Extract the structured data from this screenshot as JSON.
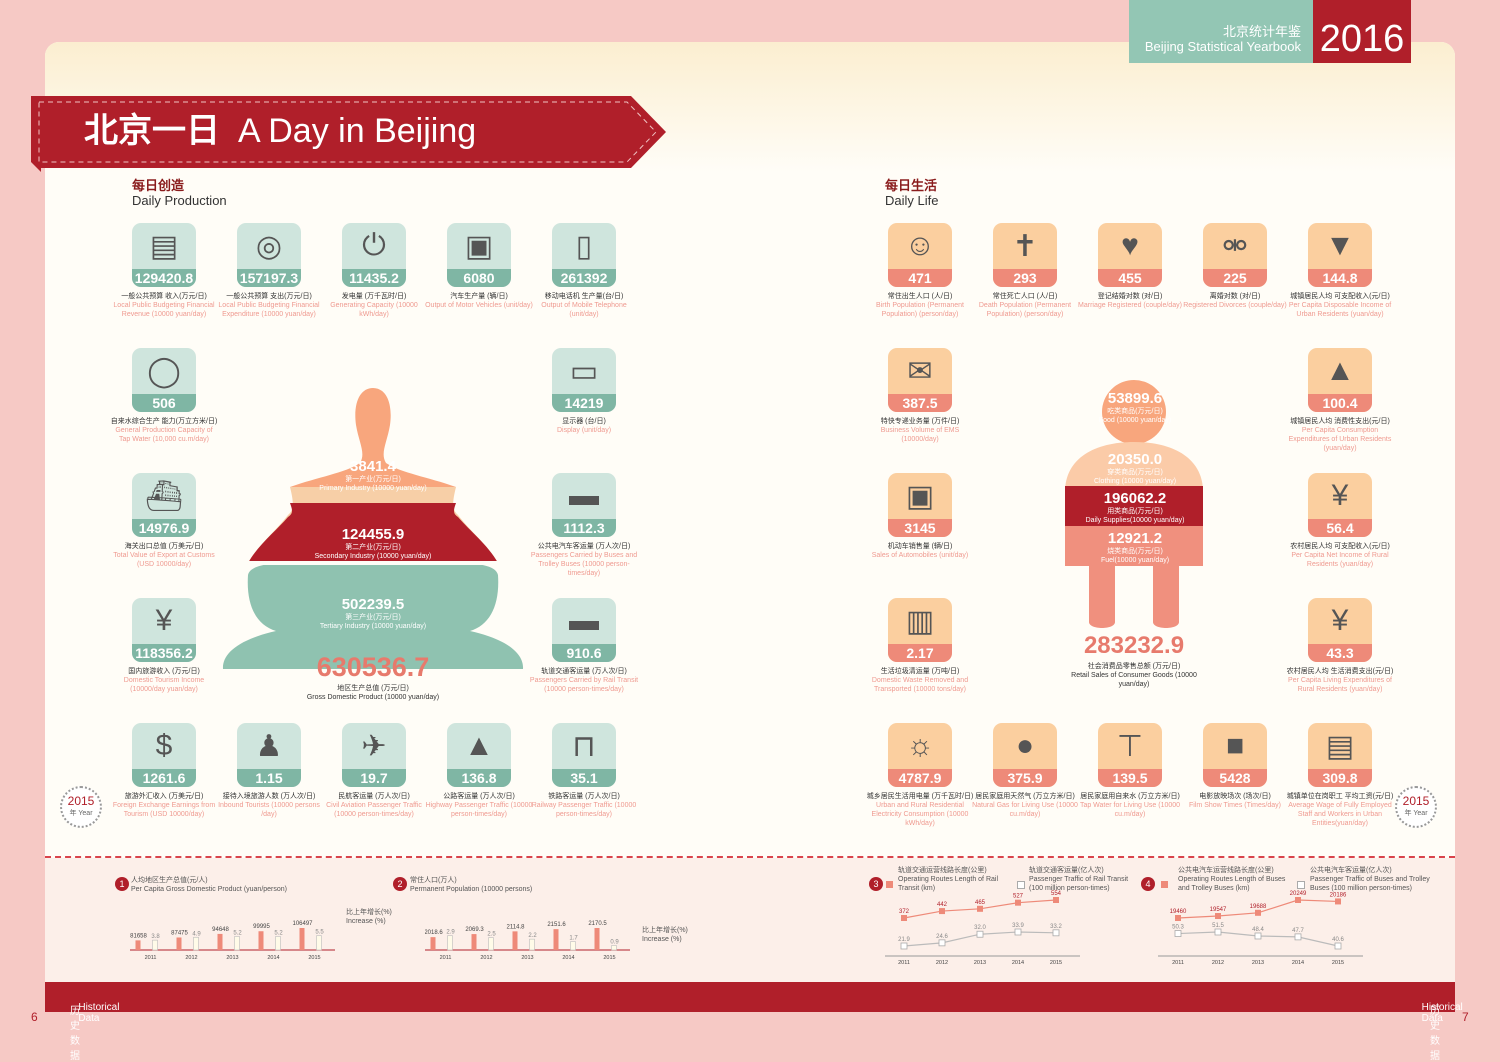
{
  "header": {
    "yearbook_zh": "北京统计年鉴",
    "yearbook_en": "Beijing Statistical Yearbook",
    "year": "2016"
  },
  "banner": {
    "title_zh": "北京一日",
    "title_en": "A Day in Beijing"
  },
  "production": {
    "title_zh": "每日创造",
    "title_en": "Daily Production",
    "tiles": [
      {
        "value": "129420.8",
        "zh": "一般公共预算 收入(万元/日)",
        "en": "Local Public Budgeting Financial Revenue (10000 yuan/day)",
        "icon": "money-stack-icon"
      },
      {
        "value": "157197.3",
        "zh": "一般公共预算 支出(万元/日)",
        "en": "Local Public Budgeting Financial Expenditure (10000 yuan/day)",
        "icon": "coins-icon"
      },
      {
        "value": "11435.2",
        "zh": "发电量 (万千瓦时/日)",
        "en": "Generating Capacity (10000 kWh/day)",
        "icon": "plug-icon"
      },
      {
        "value": "6080",
        "zh": "汽车生产量 (辆/日)",
        "en": "Output of Motor Vehicles (unit/day)",
        "icon": "car-icon"
      },
      {
        "value": "261392",
        "zh": "移动电话机 生产量(台/日)",
        "en": "Output of Mobile Telephone (unit/day)",
        "icon": "mobile-phone-icon"
      },
      {
        "value": "506",
        "zh": "自来水综合生产 能力(万立方米/日)",
        "en": "General Production Capacity of Tap Water (10,000 cu.m/day)",
        "icon": "water-tank-icon"
      },
      {
        "value": "14219",
        "zh": "显示器 (台/日)",
        "en": "Display (unit/day)",
        "icon": "monitor-icon"
      },
      {
        "value": "14976.9",
        "zh": "海关出口总值 (万美元/日)",
        "en": "Total Value of Export at Customs (USD 10000/day)",
        "icon": "cargo-ship-icon"
      },
      {
        "value": "1112.3",
        "zh": "公共电汽车客运量 (万人次/日)",
        "en": "Passengers Carried by Buses and Trolley Buses (10000 person-times/day)",
        "icon": "bus-icon"
      },
      {
        "value": "118356.2",
        "zh": "国内旅游收入 (万元/日)",
        "en": "Domestic Tourism Income (10000/day yuan/day)",
        "icon": "money-bag-icon"
      },
      {
        "value": "910.6",
        "zh": "轨道交通客运量 (万人次/日)",
        "en": "Passengers Carried by Rail Transit (10000 person-times/day)",
        "icon": "train-icon"
      },
      {
        "value": "1261.6",
        "zh": "旅游外汇收入 (万美元/日)",
        "en": "Foreign Exchange Earnings from Tourism (USD 10000/day)",
        "icon": "dollar-coin-icon"
      },
      {
        "value": "1.15",
        "zh": "接待入境旅游人数 (万人次/日)",
        "en": "Inbound Tourists (10000 persons /day)",
        "icon": "tourist-icon"
      },
      {
        "value": "19.7",
        "zh": "民航客运量 (万人次/日)",
        "en": "Civil Aviation Passenger Traffic (10000 person-times/day)",
        "icon": "airplane-icon"
      },
      {
        "value": "136.8",
        "zh": "公路客运量 (万人次/日)",
        "en": "Highway Passenger Traffic (10000 person-times/day)",
        "icon": "highway-icon"
      },
      {
        "value": "35.1",
        "zh": "铁路客运量 (万人次/日)",
        "en": "Railway Passenger Traffic (10000 person-times/day)",
        "icon": "railway-icon"
      }
    ],
    "stupa": {
      "primary": {
        "value": "3841.4",
        "zh": "第一产业(万元/日)",
        "en": "Primary Industry (10000 yuan/day)"
      },
      "secondary": {
        "value": "124455.9",
        "zh": "第二产业(万元/日)",
        "en": "Secondary Industry (10000 yuan/day)"
      },
      "tertiary": {
        "value": "502239.5",
        "zh": "第三产业(万元/日)",
        "en": "Tertiary Industry (10000 yuan/day)"
      },
      "total": {
        "value": "630536.7",
        "zh": "地区生产总值 (万元/日)",
        "en": "Gross Domestic Product (10000 yuan/day)"
      }
    }
  },
  "life": {
    "title_zh": "每日生活",
    "title_en": "Daily Life",
    "tiles": [
      {
        "value": "471",
        "zh": "常住出生人口 (人/日)",
        "en": "Birth Population (Permanent Population) (person/day)",
        "icon": "baby-icon"
      },
      {
        "value": "293",
        "zh": "常住死亡人口 (人/日)",
        "en": "Death Population (Permanent Population) (person/day)",
        "icon": "cross-icon"
      },
      {
        "value": "455",
        "zh": "登记结婚对数 (对/日)",
        "en": "Marriage Registered (couple/day)",
        "icon": "couple-icon"
      },
      {
        "value": "225",
        "zh": "离婚对数 (对/日)",
        "en": "Registered Divorces (couple/day)",
        "icon": "divorce-icon"
      },
      {
        "value": "144.8",
        "zh": "城镇居民人均 可支配收入(元/日)",
        "en": "Per Capita Disposable Income of Urban Residents (yuan/day)",
        "icon": "card-in-icon"
      },
      {
        "value": "387.5",
        "zh": "特快专递业务量 (万件/日)",
        "en": "Business Volume of EMS (10000/day)",
        "icon": "envelope-icon"
      },
      {
        "value": "100.4",
        "zh": "城镇居民人均 消费性支出(元/日)",
        "en": "Per Capita Consumption Expenditures of Urban Residents (yuan/day)",
        "icon": "card-out-icon"
      },
      {
        "value": "3145",
        "zh": "机动车销售量 (辆/日)",
        "en": "Sales of Automobiles (unit/day)",
        "icon": "car-front-icon"
      },
      {
        "value": "56.4",
        "zh": "农村居民人均 可支配收入(元/日)",
        "en": "Per Capita Net Income of Rural Residents (yuan/day)",
        "icon": "yuan-bag-in-icon"
      },
      {
        "value": "2.17",
        "zh": "生活垃圾清运量 (万吨/日)",
        "en": "Domestic Waste Removed and Transported (10000 tons/day)",
        "icon": "trash-icon"
      },
      {
        "value": "43.3",
        "zh": "农村居民人均 生活消费支出(元/日)",
        "en": "Per Capita Living Expenditures of Rural Residents (yuan/day)",
        "icon": "yuan-bag-out-icon"
      },
      {
        "value": "4787.9",
        "zh": "城乡居民生活用电量 (万千瓦时/日)",
        "en": "Urban and Rural Residential Electricity Consumption (10000 kWh/day)",
        "icon": "lamp-icon"
      },
      {
        "value": "375.9",
        "zh": "居民家庭用天然气 (万立方米/日)",
        "en": "Natural Gas for Living Use (10000 cu.m/day)",
        "icon": "gas-bomb-icon"
      },
      {
        "value": "139.5",
        "zh": "居民家庭用自来水 (万立方米/日)",
        "en": "Tap Water for Living Use (10000 cu.m/day)",
        "icon": "faucet-icon"
      },
      {
        "value": "5428",
        "zh": "电影放映场次 (场次/日)",
        "en": "Film Show Times (Times/day)",
        "icon": "film-camera-icon"
      },
      {
        "value": "309.8",
        "zh": "城镇单位在岗职工 平均工资(元/日)",
        "en": "Average Wage of Fully Employed Staff and Workers in Urban Entities(yuan/day)",
        "icon": "card-worker-icon"
      }
    ],
    "person": {
      "food": {
        "value": "53899.6",
        "zh": "吃类商品(万元/日)",
        "en": "Food (10000 yuan/day)"
      },
      "clothing": {
        "value": "20350.0",
        "zh": "穿类商品(万元/日)",
        "en": "Clothing (10000 yuan/day)"
      },
      "daily": {
        "value": "196062.2",
        "zh": "用类商品(万元/日)",
        "en": "Daily Supplies(10000 yuan/day)"
      },
      "fuel": {
        "value": "12921.2",
        "zh": "烧类商品(万元/日)",
        "en": "Fuel(10000 yuan/day)"
      },
      "total": {
        "value": "283232.9",
        "zh": "社会消费品零售总额 (万元/日)",
        "en": "Retail Sales of Consumer Goods (10000 yuan/day)"
      }
    }
  },
  "stamp": {
    "year": "2015",
    "zh": "年",
    "en": "Year"
  },
  "chart_data": [
    {
      "type": "bar",
      "number": "1",
      "title_zh": "人均地区生产总值(元/人)",
      "title": "Per Capita Gross Domestic Product (yuan/person)",
      "categories": [
        "2011",
        "2012",
        "2013",
        "2014",
        "2015"
      ],
      "series": [
        {
          "name": "人均地区生产总值(元/人)",
          "values": [
            81658,
            87475,
            94648,
            99995,
            106497
          ]
        },
        {
          "name": "比上年增长(%) Increase (%)",
          "values": [
            3.8,
            4.9,
            5.2,
            5.2,
            5.5
          ]
        }
      ],
      "legend_zh": "比上年增长(%)",
      "legend_en": "Increase (%)",
      "labels": [
        "81658",
        "87475",
        "94648",
        "99995",
        "106497"
      ],
      "growth_labels": [
        "3.8",
        "4.9",
        "5.2",
        "5.2",
        "5.5"
      ]
    },
    {
      "type": "bar",
      "number": "2",
      "title_zh": "常住人口(万人)",
      "title": "Permanent Population (10000 persons)",
      "categories": [
        "2011",
        "2012",
        "2013",
        "2014",
        "2015"
      ],
      "series": [
        {
          "name": "常住人口(万人)",
          "values": [
            2018.6,
            2069.3,
            2114.8,
            2151.6,
            2170.5
          ]
        },
        {
          "name": "比上年增长(%) Increase (%)",
          "values": [
            2.9,
            2.5,
            2.2,
            1.7,
            0.9
          ]
        }
      ],
      "legend_zh": "比上年增长(%)",
      "legend_en": "Increase (%)",
      "labels": [
        "2018.6",
        "2069.3",
        "2114.8",
        "2151.6",
        "2170.5"
      ],
      "growth_labels": [
        "2.9",
        "2.5",
        "2.2",
        "1.7",
        "0.9"
      ]
    },
    {
      "type": "line",
      "number": "3",
      "legend": [
        {
          "zh": "轨道交通运营线路长度(公里)",
          "en": "Operating Routes Length of Rail Transit (km)"
        },
        {
          "zh": "轨道交通客运量(亿人次)",
          "en": "Passenger Traffic of Rail Transit (100 million person-times)"
        }
      ],
      "categories": [
        "2011",
        "2012",
        "2013",
        "2014",
        "2015"
      ],
      "series": [
        {
          "name": "Operating Routes Length of Rail Transit (km)",
          "values": [
            372,
            442,
            465,
            527,
            554
          ]
        },
        {
          "name": "Passenger Traffic of Rail Transit (100 million person-times)",
          "values": [
            21.9,
            24.6,
            32.0,
            33.9,
            33.2
          ]
        }
      ],
      "labels": [
        "372",
        "442",
        "465",
        "527",
        "554"
      ],
      "labels2": [
        "21.9",
        "24.6",
        "32.0",
        "33.9",
        "33.2"
      ]
    },
    {
      "type": "line",
      "number": "4",
      "legend": [
        {
          "zh": "公共电汽车运营线路长度(公里)",
          "en": "Operating Routes Length of Buses and Trolley Buses (km)"
        },
        {
          "zh": "公共电汽车客运量(亿人次)",
          "en": "Passenger Traffic of Buses and Trolley Buses (100 million person-times)"
        }
      ],
      "categories": [
        "2011",
        "2012",
        "2013",
        "2014",
        "2015"
      ],
      "series": [
        {
          "name": "Operating Routes Length of Buses and Trolley Buses (km)",
          "values": [
            19460,
            19547,
            19688,
            20249,
            20186
          ]
        },
        {
          "name": "Passenger Traffic of Buses and Trolley Buses (100 million person-times)",
          "values": [
            50.3,
            51.5,
            48.4,
            47.7,
            40.6
          ]
        }
      ],
      "labels": [
        "19460",
        "19547",
        "19688",
        "20249",
        "20186"
      ],
      "labels2": [
        "50.3",
        "51.5",
        "48.4",
        "47.7",
        "40.6"
      ]
    }
  ],
  "footer": {
    "left_zh": "历史数据",
    "left_en": "Historical Data",
    "right_en": "Historical Data",
    "right_zh": "历史数据",
    "page_left": "6",
    "page_right": "7"
  }
}
